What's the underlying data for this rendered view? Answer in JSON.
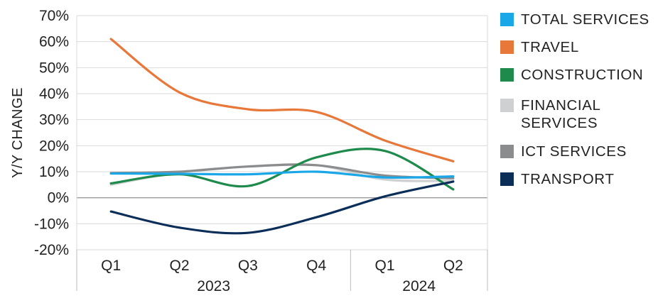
{
  "chart_data": {
    "type": "line",
    "ylabel": "Y/Y CHANGE",
    "ylim": [
      -20,
      70
    ],
    "yticks": [
      "70%",
      "60%",
      "50%",
      "40%",
      "30%",
      "20%",
      "10%",
      "0%",
      "-10%",
      "-20%"
    ],
    "categories": [
      "Q1",
      "Q2",
      "Q3",
      "Q4",
      "Q1",
      "Q2"
    ],
    "year_groups": [
      {
        "label": "2023",
        "span": 4
      },
      {
        "label": "2024",
        "span": 2
      }
    ],
    "gridlines": true,
    "legend_position": "right",
    "series": [
      {
        "name": "TOTAL SERVICES",
        "color": "#1aa7e8",
        "values": [
          9.3,
          9.2,
          9.0,
          10.0,
          7.8,
          8.2
        ]
      },
      {
        "name": "TRAVEL",
        "color": "#e8773a",
        "values": [
          61.0,
          40.5,
          34.0,
          33.0,
          22.0,
          14.0
        ]
      },
      {
        "name": "CONSTRUCTION",
        "color": "#1e8a4c",
        "values": [
          5.5,
          9.0,
          4.5,
          15.5,
          18.0,
          3.2
        ]
      },
      {
        "name": "FINANCIAL\nSERVICES",
        "color": "#cfd0d2",
        "values": [
          5.0,
          9.8,
          12.0,
          12.5,
          7.0,
          6.5
        ]
      },
      {
        "name": "ICT SERVICES",
        "color": "#8a8c8e",
        "values": [
          9.5,
          10.0,
          12.0,
          12.5,
          8.5,
          7.5
        ]
      },
      {
        "name": "TRANSPORT",
        "color": "#0b2e59",
        "values": [
          -5.3,
          -11.5,
          -13.5,
          -7.5,
          0.5,
          6.2
        ]
      }
    ]
  }
}
